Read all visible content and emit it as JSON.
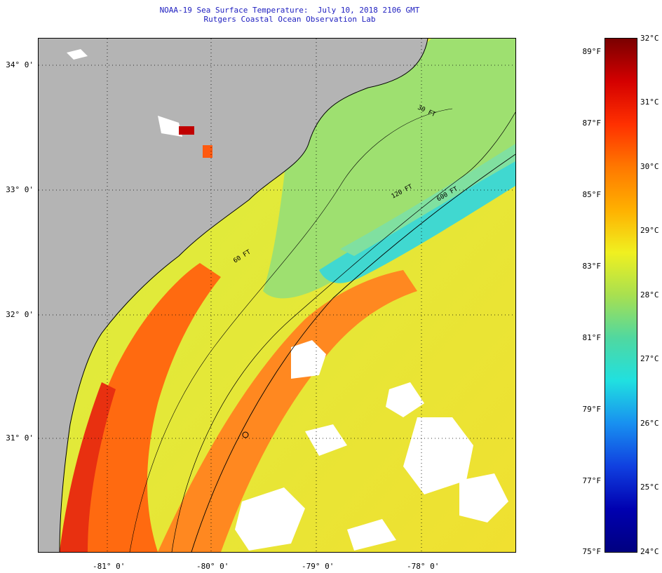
{
  "title": {
    "line1": "NOAA-19 Sea Surface Temperature:  July 10, 2018 2106 GMT",
    "line2": "Rutgers Coastal Ocean Observation Lab"
  },
  "map": {
    "lat_labels": [
      "34° 0'",
      "33° 0'",
      "32° 0'",
      "31° 0'"
    ],
    "lon_labels": [
      "-81° 0'",
      "-80° 0'",
      "-79° 0'",
      "-78° 0'"
    ],
    "contour_labels": [
      "120 FT",
      "600 FT",
      "60 FT",
      "30 FT"
    ],
    "land_color": "#b4b4b4",
    "cloud_color": "#ffffff"
  },
  "colorbar": {
    "celsius": [
      "32°C",
      "31°C",
      "30°C",
      "29°C",
      "28°C",
      "27°C",
      "26°C",
      "25°C",
      "24°C"
    ],
    "fahrenheit": [
      "89°F",
      "87°F",
      "85°F",
      "83°F",
      "81°F",
      "79°F",
      "77°F",
      "75°F"
    ],
    "colors": [
      "#7a0000",
      "#d40000",
      "#ff3000",
      "#ff7800",
      "#ffb000",
      "#f0f020",
      "#a8e050",
      "#50d8a0",
      "#20e0e0",
      "#1890f0",
      "#1040e0",
      "#0000b0",
      "#000080"
    ]
  }
}
